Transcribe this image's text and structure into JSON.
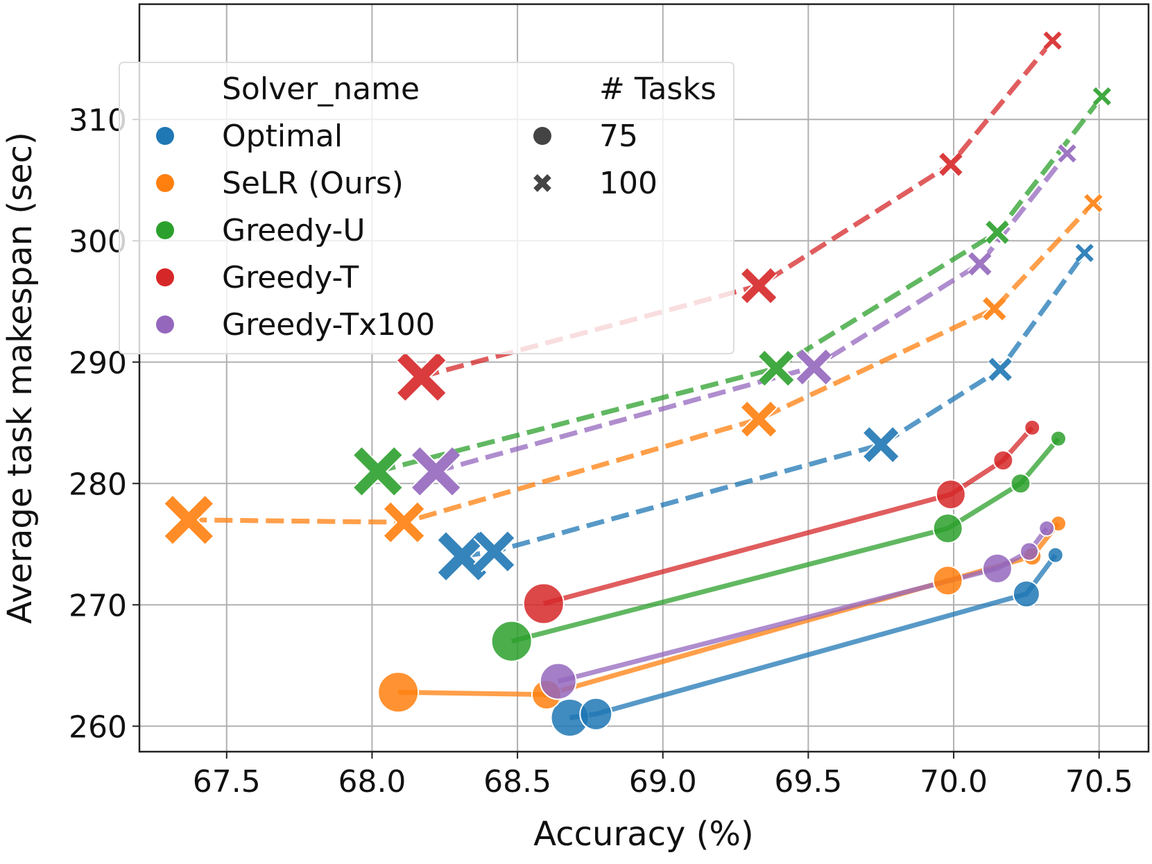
{
  "chart_data": {
    "type": "line",
    "xlabel": "Accuracy (%)",
    "ylabel": "Average task makespan (sec)",
    "xlim": [
      67.2,
      70.67
    ],
    "ylim": [
      257.9,
      319.5
    ],
    "xticks": [
      67.5,
      68.0,
      68.5,
      69.0,
      69.5,
      70.0,
      70.5
    ],
    "xtick_labels": [
      "67.5",
      "68.0",
      "68.5",
      "69.0",
      "69.5",
      "70.0",
      "70.5"
    ],
    "yticks": [
      260,
      270,
      280,
      290,
      300,
      310
    ],
    "ytick_labels": [
      "260",
      "270",
      "280",
      "290",
      "300",
      "310"
    ],
    "grid": true,
    "legend": {
      "placement": "top-left",
      "hue_title": "Solver_name",
      "style_title": "# Tasks",
      "style_entries": [
        {
          "label": "75",
          "marker": "circle",
          "line": "solid"
        },
        {
          "label": "100",
          "marker": "x",
          "line": "dashed"
        }
      ]
    },
    "series": [
      {
        "name": "Optimal",
        "color": "#1f77b4",
        "tasks75": {
          "x": [
            68.68,
            68.77,
            70.25,
            70.35
          ],
          "y": [
            260.7,
            261.0,
            270.9,
            274.1
          ],
          "sizes": [
            27,
            23,
            19,
            11
          ]
        },
        "tasks100": {
          "x": [
            68.31,
            68.42,
            69.75,
            70.16,
            70.45
          ],
          "y": [
            274.0,
            274.4,
            283.2,
            289.4,
            299.0
          ],
          "sizes": [
            29,
            24,
            21,
            14,
            11
          ]
        }
      },
      {
        "name": "SeLR (Ours)",
        "color": "#ff7f0e",
        "tasks75": {
          "x": [
            68.09,
            68.6,
            69.98,
            70.27,
            70.36
          ],
          "y": [
            262.8,
            262.6,
            272.0,
            274.0,
            276.7
          ],
          "sizes": [
            29,
            21,
            21,
            13,
            11
          ]
        },
        "tasks100": {
          "x": [
            67.37,
            68.11,
            69.33,
            70.14,
            70.48
          ],
          "y": [
            277.0,
            276.8,
            285.3,
            294.4,
            303.1
          ],
          "sizes": [
            29,
            24,
            21,
            14,
            11
          ]
        }
      },
      {
        "name": "Greedy-U",
        "color": "#2ca02c",
        "tasks75": {
          "x": [
            68.48,
            69.98,
            70.23,
            70.36
          ],
          "y": [
            267.0,
            276.3,
            280.0,
            283.7
          ],
          "sizes": [
            29,
            21,
            14,
            11
          ]
        },
        "tasks100": {
          "x": [
            68.02,
            69.39,
            70.15,
            70.51
          ],
          "y": [
            281.0,
            289.5,
            300.7,
            311.9
          ],
          "sizes": [
            29,
            21,
            14,
            11
          ]
        }
      },
      {
        "name": "Greedy-T",
        "color": "#d62728",
        "tasks75": {
          "x": [
            68.59,
            69.99,
            70.17,
            70.27
          ],
          "y": [
            270.1,
            279.1,
            281.9,
            284.6
          ],
          "sizes": [
            29,
            21,
            14,
            11
          ]
        },
        "tasks100": {
          "x": [
            68.17,
            69.33,
            69.99,
            70.34
          ],
          "y": [
            288.8,
            296.3,
            306.3,
            316.5
          ],
          "sizes": [
            29,
            21,
            14,
            11
          ]
        }
      },
      {
        "name": "Greedy-Tx100",
        "color": "#9467bd",
        "tasks75": {
          "x": [
            68.64,
            70.15,
            70.26,
            70.32
          ],
          "y": [
            263.7,
            273.0,
            274.4,
            276.3
          ],
          "sizes": [
            26,
            21,
            13,
            11
          ]
        },
        "tasks100": {
          "x": [
            68.22,
            69.52,
            70.09,
            70.39
          ],
          "y": [
            281.0,
            289.6,
            298.1,
            307.2
          ],
          "sizes": [
            29,
            21,
            14,
            11
          ]
        }
      }
    ]
  }
}
